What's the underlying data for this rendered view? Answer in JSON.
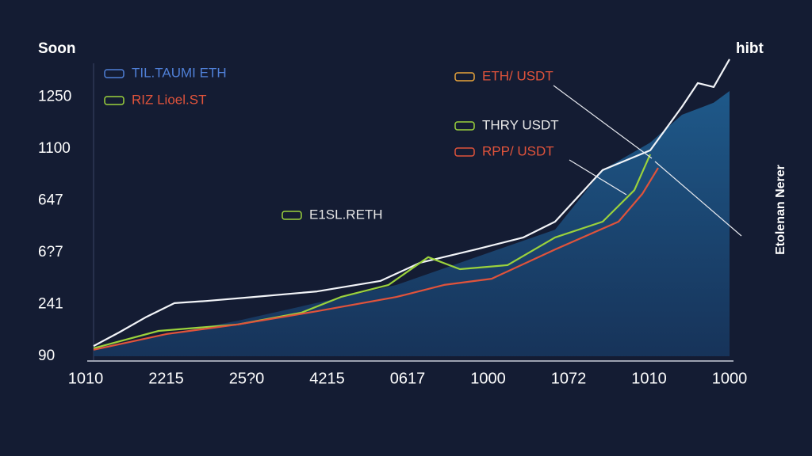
{
  "chart_data": {
    "type": "line",
    "top_left_label": "Soon",
    "top_right_label": "hibt",
    "side_label": "Etolenan Nerer",
    "y_categories": [
      "90",
      "241",
      "6?7",
      "647",
      "1100",
      "1250"
    ],
    "x_categories": [
      "1010",
      "2215",
      "25?0",
      "4215",
      "0617",
      "1000",
      "1072",
      "1010",
      "1000"
    ],
    "xlim": [
      0,
      802
    ],
    "ylim": [
      0,
      100
    ],
    "legend": [
      {
        "text": "TIL.TAUMI ETH",
        "color": "#4f7fd6"
      },
      {
        "text": "RIZ Lioel.ST",
        "color": "#e0533b"
      },
      {
        "text": "ETH/ USDT",
        "color": "#e0533b"
      },
      {
        "text": "THRY USDT",
        "color": "#e8e8e8"
      },
      {
        "text": "RPP/ USDT",
        "color": "#e0533b"
      },
      {
        "text": "E1SL.RETH",
        "color": "#e8e8e8"
      }
    ],
    "series": [
      {
        "color": "#1f4f7e",
        "fill": true,
        "x": [
          0,
          182,
          382,
          582,
          642,
          702,
          742,
          782,
          802
        ],
        "values": [
          2.6,
          11.5,
          23.1,
          41,
          60.3,
          69.2,
          78.2,
          82.1,
          85.9
        ]
      },
      {
        "color": "#f2f4f8",
        "x": [
          0,
          32,
          67,
          102,
          142,
          202,
          282,
          362,
          412,
          482,
          542,
          582,
          642,
          702,
          742,
          762,
          782,
          802
        ],
        "values": [
          3.3,
          7.7,
          12.8,
          17.2,
          17.9,
          19.2,
          21,
          24.4,
          30.3,
          34.6,
          38.5,
          43.6,
          60.3,
          66.7,
          80.8,
          88.5,
          87.2,
          96.2
        ]
      },
      {
        "color": "#9bd23c",
        "x": [
          0,
          82,
          182,
          262,
          312,
          372,
          422,
          462,
          522,
          582,
          642,
          682,
          702
        ],
        "values": [
          2.6,
          8.2,
          10.3,
          14.1,
          19.2,
          23.1,
          32.1,
          28.2,
          29.5,
          38.5,
          43.6,
          53.8,
          65.4
        ]
      },
      {
        "color": "#e0533b",
        "x": [
          0,
          92,
          182,
          282,
          382,
          442,
          502,
          582,
          662,
          692,
          712
        ],
        "values": [
          2.1,
          7.2,
          10.3,
          14.6,
          19.2,
          23.1,
          25.1,
          34.6,
          43.6,
          52.6,
          61.0
        ]
      }
    ]
  }
}
